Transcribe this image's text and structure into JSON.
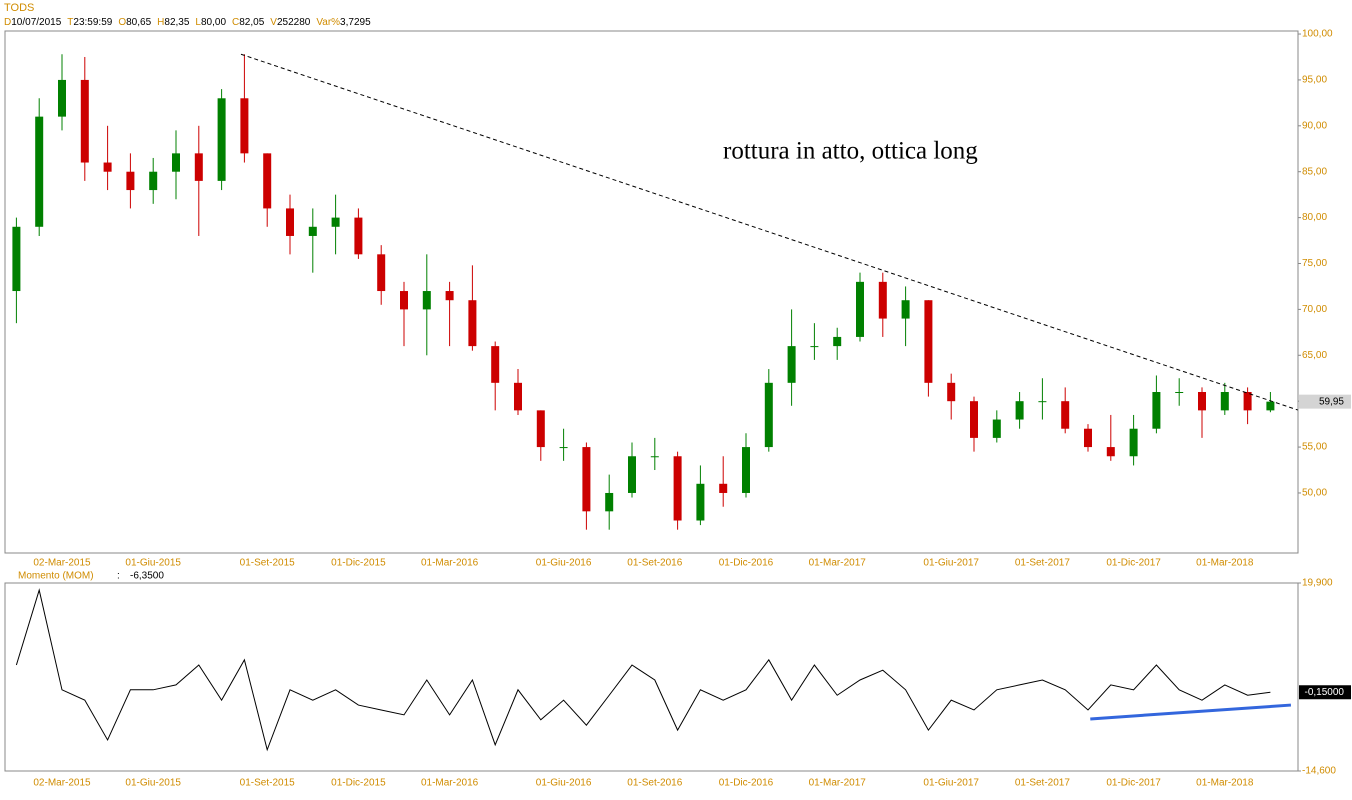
{
  "header": {
    "symbol": "TODS",
    "fields": [
      {
        "key": "D",
        "value": "10/07/2015"
      },
      {
        "key": "T",
        "value": "23:59:59"
      },
      {
        "key": "O",
        "value": "80,65"
      },
      {
        "key": "H",
        "value": "82,35"
      },
      {
        "key": "L",
        "value": "80,00"
      },
      {
        "key": "C",
        "value": "82,05"
      },
      {
        "key": "V",
        "value": "252280"
      },
      {
        "key": "Var%",
        "value": "3,7295"
      }
    ]
  },
  "chart_data": [
    {
      "type": "candlestick",
      "annotation": "rottura in atto, ottica long",
      "up_color": "#008000",
      "down_color": "#cc0000",
      "categories": [
        null,
        null,
        "02-Mar-2015",
        null,
        null,
        null,
        "01-Giu-2015",
        null,
        null,
        null,
        null,
        "01-Set-2015",
        null,
        null,
        null,
        "01-Dic-2015",
        null,
        null,
        null,
        "01-Mar-2016",
        null,
        null,
        null,
        null,
        "01-Giu-2016",
        null,
        null,
        null,
        "01-Set-2016",
        null,
        null,
        null,
        "01-Dic-2016",
        null,
        null,
        null,
        "01-Mar-2017",
        null,
        null,
        null,
        null,
        "01-Giu-2017",
        null,
        null,
        null,
        "01-Set-2017",
        null,
        null,
        null,
        "01-Dic-2017",
        null,
        null,
        null,
        "01-Mar-2018",
        null,
        null
      ],
      "open": [
        72,
        79,
        91,
        95,
        86,
        85,
        83,
        85,
        87,
        84,
        93,
        87,
        81,
        78,
        79,
        80,
        76,
        72,
        70,
        72,
        71,
        66,
        62,
        59,
        55,
        55,
        48,
        50,
        54,
        54,
        47,
        51,
        50,
        55,
        62,
        66,
        66,
        67,
        73,
        69,
        71,
        62,
        60,
        56,
        58,
        60,
        60,
        57,
        55,
        54,
        57,
        61,
        61,
        59,
        61,
        59
      ],
      "high": [
        80,
        93,
        97.8,
        97.5,
        90,
        87,
        86.5,
        89.5,
        90,
        94,
        97.8,
        87,
        82.5,
        81,
        82.5,
        81,
        77,
        73,
        76,
        73,
        74.8,
        66.5,
        63.5,
        59,
        57,
        55.5,
        52,
        55.5,
        56,
        54.5,
        53,
        54,
        56.5,
        63.5,
        70,
        68.5,
        68,
        74,
        74,
        72.5,
        71,
        63,
        60.5,
        59,
        61,
        62.5,
        61.5,
        57.5,
        58.5,
        58.5,
        62.8,
        62.5,
        61.5,
        62,
        61.5,
        61
      ],
      "low": [
        68.5,
        78,
        89.5,
        84,
        83,
        81,
        81.5,
        82,
        78,
        83,
        86,
        79,
        76,
        74,
        76,
        75.5,
        70.5,
        66,
        65,
        66,
        65.5,
        59,
        58.5,
        53.5,
        53.5,
        46,
        46,
        49.5,
        52.5,
        46,
        46.5,
        48.5,
        49.5,
        54.5,
        59.5,
        64.5,
        64.5,
        66.5,
        67,
        66,
        60.5,
        58,
        54.5,
        55.5,
        57,
        58,
        56.5,
        54.5,
        53.5,
        53,
        56.5,
        59.5,
        56,
        58.5,
        57.5,
        58.8
      ],
      "close": [
        79,
        91,
        95,
        86,
        85,
        83,
        85,
        87,
        84,
        93,
        87,
        81,
        78,
        79,
        80,
        76,
        72,
        70,
        72,
        71,
        66,
        62,
        59,
        55,
        55,
        48,
        50,
        54,
        54,
        47,
        51,
        50,
        55,
        62,
        66,
        66,
        67,
        73,
        69,
        71,
        62,
        60,
        56,
        58,
        60,
        60,
        57,
        55,
        54,
        57,
        61,
        61,
        59,
        61,
        59,
        59.95
      ],
      "trendline": {
        "x": [
          9.85,
          56.2
        ],
        "values": [
          97.8,
          59.04
        ]
      },
      "last_label": {
        "value": 59.95,
        "label": "59,95"
      },
      "ylim": [
        43.46,
        100.33
      ],
      "yticks": [
        {
          "value": 50,
          "label": "50,00"
        },
        {
          "value": 55,
          "label": "55,00"
        },
        {
          "value": 60,
          "label": "60,00"
        },
        {
          "value": 65,
          "label": "65,00"
        },
        {
          "value": 70,
          "label": "70,00"
        },
        {
          "value": 75,
          "label": "75,00"
        },
        {
          "value": 80,
          "label": "80,00"
        },
        {
          "value": 85,
          "label": "85,00"
        },
        {
          "value": 90,
          "label": "90,00"
        },
        {
          "value": 95,
          "label": "95,00"
        },
        {
          "value": 100,
          "label": "100,00"
        }
      ]
    },
    {
      "type": "line",
      "title": "Momento (MOM)",
      "readout": "-6,3500",
      "color": "#000000",
      "values": [
        4.85,
        18.6,
        0.3,
        -1.6,
        -8.9,
        0.3,
        0.3,
        1.2,
        4.85,
        -1.6,
        5.8,
        -10.7,
        0.3,
        -1.6,
        0.3,
        -2.5,
        -3.4,
        -4.3,
        2.1,
        -4.3,
        2.1,
        -9.8,
        0.3,
        -5.2,
        -1.6,
        -6.2,
        -0.7,
        4.85,
        2.1,
        -7.1,
        0.3,
        -1.6,
        0.3,
        5.8,
        -1.6,
        4.85,
        -0.7,
        2.1,
        3.9,
        0.3,
        -7.1,
        -1.6,
        -3.4,
        0.3,
        1.2,
        2.1,
        0.3,
        -3.4,
        1.2,
        0.3,
        4.85,
        0.3,
        -1.6,
        1.2,
        -0.7,
        -0.15
      ],
      "support": {
        "x": [
          47.1,
          55.9
        ],
        "values": [
          -5.05,
          -2.5
        ],
        "color": "#3366dd"
      },
      "last_label": {
        "value": -0.15,
        "label": "-0,15000"
      },
      "ylim": [
        -14.6,
        19.9
      ],
      "yticks": [
        {
          "value": -14.6,
          "label": "-14,600"
        },
        {
          "value": 19.9,
          "label": "19,900"
        }
      ]
    }
  ]
}
